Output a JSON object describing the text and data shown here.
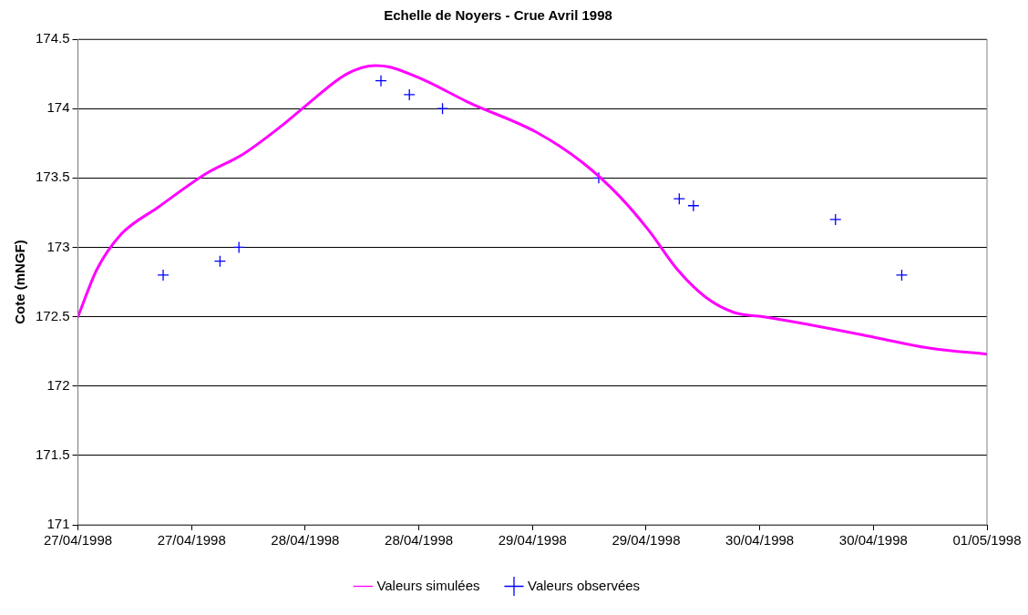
{
  "chart_data": {
    "type": "line",
    "title": "Echelle de Noyers - Crue Avril 1998",
    "ylabel": "Cote (mNGF)",
    "xlim": [
      "1998-04-27T00:00",
      "1998-05-01T00:00"
    ],
    "xticks": [
      {
        "value": "1998-04-27T00:00",
        "label": "27/04/1998"
      },
      {
        "value": "1998-04-27T12:00",
        "label": "27/04/1998"
      },
      {
        "value": "1998-04-28T00:00",
        "label": "28/04/1998"
      },
      {
        "value": "1998-04-28T12:00",
        "label": "28/04/1998"
      },
      {
        "value": "1998-04-29T00:00",
        "label": "29/04/1998"
      },
      {
        "value": "1998-04-29T12:00",
        "label": "29/04/1998"
      },
      {
        "value": "1998-04-30T00:00",
        "label": "30/04/1998"
      },
      {
        "value": "1998-04-30T12:00",
        "label": "30/04/1998"
      },
      {
        "value": "1998-05-01T00:00",
        "label": "01/05/1998"
      }
    ],
    "ylim": [
      171,
      174.5
    ],
    "yticks": [
      171,
      171.5,
      172,
      172.5,
      173,
      173.5,
      174,
      174.5
    ],
    "grid": "y",
    "legend": "bottom",
    "series": [
      {
        "name": "Valeurs simulées",
        "color": "#ff00ff",
        "marker": "none",
        "line_style": "solid",
        "x": [
          "1998-04-27T00:00",
          "1998-04-27T02:00",
          "1998-04-27T04:30",
          "1998-04-27T08:30",
          "1998-04-27T13:30",
          "1998-04-27T17:24",
          "1998-04-27T21:24",
          "1998-04-28T00:24",
          "1998-04-28T04:24",
          "1998-04-28T07:24",
          "1998-04-28T08:54",
          "1998-04-28T12:24",
          "1998-04-28T17:24",
          "1998-04-29T00:24",
          "1998-04-29T05:18",
          "1998-04-29T09:18",
          "1998-04-29T12:18",
          "1998-04-29T15:18",
          "1998-04-29T18:18",
          "1998-04-29T21:18",
          "1998-04-30T00:18",
          "1998-04-30T06:12",
          "1998-04-30T12:12",
          "1998-04-30T18:12",
          "1998-05-01T00:00"
        ],
        "values": [
          172.5,
          172.84,
          173.09,
          173.29,
          173.53,
          173.67,
          173.87,
          174.04,
          174.25,
          174.31,
          174.3,
          174.21,
          174.04,
          173.83,
          173.61,
          173.36,
          173.12,
          172.84,
          172.64,
          172.53,
          172.5,
          172.43,
          172.35,
          172.27,
          172.23
        ]
      },
      {
        "name": "Valeurs observées",
        "type": "scatter",
        "color": "#0000ff",
        "marker": "cross",
        "x": [
          "1998-04-27T09:00",
          "1998-04-27T15:00",
          "1998-04-27T17:00",
          "1998-04-28T08:00",
          "1998-04-28T11:00",
          "1998-04-28T14:30",
          "1998-04-29T07:00",
          "1998-04-29T15:30",
          "1998-04-29T17:00",
          "1998-04-30T08:00",
          "1998-04-30T15:00"
        ],
        "values": [
          172.8,
          172.9,
          173.0,
          174.2,
          174.1,
          174.0,
          173.5,
          173.35,
          173.3,
          173.2,
          172.8
        ]
      }
    ]
  }
}
